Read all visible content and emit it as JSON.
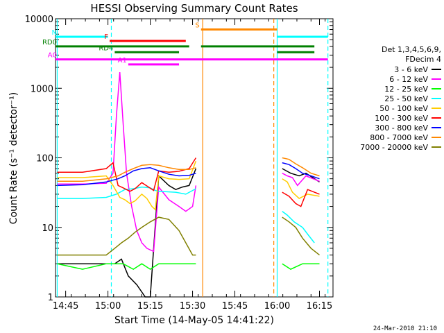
{
  "chart_data": {
    "type": "line",
    "title": "HESSI Observing Summary Count Rates",
    "xlabel": "Start Time (14-May-05 14:41:22)",
    "ylabel": "Count Rate (s⁻¹ detector⁻¹)",
    "ylog": true,
    "xlim": [
      14.69,
      16.33
    ],
    "ylim": [
      1,
      10000
    ],
    "x_ticks": [
      {
        "t": 14.75,
        "label": "14:45"
      },
      {
        "t": 15.0,
        "label": "15:00"
      },
      {
        "t": 15.25,
        "label": "15:15"
      },
      {
        "t": 15.5,
        "label": "15:30"
      },
      {
        "t": 15.75,
        "label": "15:45"
      },
      {
        "t": 16.0,
        "label": "16:00"
      },
      {
        "t": 16.25,
        "label": "16:15"
      }
    ],
    "y_ticks": [
      {
        "v": 1,
        "label": "1"
      },
      {
        "v": 10,
        "label": "10"
      },
      {
        "v": 100,
        "label": "100"
      },
      {
        "v": 1000,
        "label": "1000"
      },
      {
        "v": 10000,
        "label": "10000"
      }
    ],
    "legend": {
      "header": [
        "Det 1,3,4,5,6,9,",
        "FDecim 4"
      ],
      "position": "right"
    },
    "series": [
      {
        "name": "3 - 6 keV",
        "color": "#000000",
        "points": [
          [
            14.7,
            3
          ],
          [
            14.85,
            3
          ],
          [
            14.99,
            3
          ],
          [
            15.04,
            3
          ],
          [
            15.08,
            3.5
          ],
          [
            15.12,
            2
          ],
          [
            15.17,
            1.5
          ],
          [
            15.22,
            1
          ],
          [
            15.25,
            1
          ],
          [
            15.3,
            55
          ],
          [
            15.36,
            40
          ],
          [
            15.4,
            35
          ],
          [
            15.44,
            38
          ],
          [
            15.48,
            40
          ],
          [
            15.52,
            70
          ],
          [
            16.03,
            70
          ],
          [
            16.08,
            60
          ],
          [
            16.13,
            55
          ],
          [
            16.17,
            60
          ],
          [
            16.25,
            45
          ]
        ]
      },
      {
        "name": "6 - 12 keV",
        "color": "#ff00ff",
        "points": [
          [
            14.7,
            42
          ],
          [
            14.85,
            42
          ],
          [
            14.99,
            43
          ],
          [
            15.03,
            60
          ],
          [
            15.05,
            400
          ],
          [
            15.07,
            1700
          ],
          [
            15.09,
            300
          ],
          [
            15.11,
            60
          ],
          [
            15.14,
            20
          ],
          [
            15.17,
            9
          ],
          [
            15.2,
            6
          ],
          [
            15.23,
            5
          ],
          [
            15.27,
            4.5
          ],
          [
            15.3,
            38
          ],
          [
            15.36,
            25
          ],
          [
            15.42,
            20
          ],
          [
            15.46,
            17
          ],
          [
            15.5,
            20
          ],
          [
            15.52,
            40
          ],
          [
            16.03,
            60
          ],
          [
            16.06,
            55
          ],
          [
            16.09,
            52
          ],
          [
            16.12,
            40
          ],
          [
            16.17,
            55
          ],
          [
            16.25,
            46
          ]
        ]
      },
      {
        "name": "12 - 25 keV",
        "color": "#00ff00",
        "points": [
          [
            14.7,
            3
          ],
          [
            14.85,
            2.5
          ],
          [
            14.99,
            3
          ],
          [
            15.04,
            3
          ],
          [
            15.09,
            3
          ],
          [
            15.15,
            2.5
          ],
          [
            15.2,
            3
          ],
          [
            15.25,
            2.5
          ],
          [
            15.3,
            3
          ],
          [
            15.4,
            3
          ],
          [
            15.45,
            3
          ],
          [
            15.5,
            3
          ],
          [
            15.52,
            3
          ],
          [
            16.03,
            3
          ],
          [
            16.08,
            2.5
          ],
          [
            16.15,
            3
          ],
          [
            16.25,
            3
          ]
        ]
      },
      {
        "name": "25 - 50 keV",
        "color": "#00ffff",
        "points": [
          [
            14.7,
            26
          ],
          [
            14.85,
            26
          ],
          [
            14.99,
            27
          ],
          [
            15.05,
            30
          ],
          [
            15.1,
            35
          ],
          [
            15.15,
            36
          ],
          [
            15.2,
            38
          ],
          [
            15.25,
            37
          ],
          [
            15.28,
            34
          ],
          [
            15.3,
            33
          ],
          [
            15.4,
            32
          ],
          [
            15.46,
            30
          ],
          [
            15.52,
            36
          ],
          [
            16.03,
            17
          ],
          [
            16.06,
            15
          ],
          [
            16.1,
            12
          ],
          [
            16.15,
            10
          ],
          [
            16.18,
            8
          ],
          [
            16.22,
            6
          ]
        ]
      },
      {
        "name": "50 - 100 keV",
        "color": "#ffcc00",
        "points": [
          [
            14.7,
            52
          ],
          [
            14.85,
            52
          ],
          [
            14.99,
            55
          ],
          [
            15.03,
            40
          ],
          [
            15.07,
            27
          ],
          [
            15.1,
            25
          ],
          [
            15.13,
            22
          ],
          [
            15.16,
            24
          ],
          [
            15.2,
            30
          ],
          [
            15.23,
            26
          ],
          [
            15.26,
            20
          ],
          [
            15.28,
            18
          ],
          [
            15.3,
            55
          ],
          [
            15.36,
            50
          ],
          [
            15.42,
            49
          ],
          [
            15.48,
            50
          ],
          [
            15.52,
            90
          ],
          [
            16.03,
            50
          ],
          [
            16.06,
            45
          ],
          [
            16.09,
            32
          ],
          [
            16.13,
            26
          ],
          [
            16.18,
            30
          ],
          [
            16.25,
            28
          ]
        ]
      },
      {
        "name": "100 - 300 keV",
        "color": "#ff0000",
        "points": [
          [
            14.7,
            62
          ],
          [
            14.85,
            62
          ],
          [
            14.99,
            70
          ],
          [
            15.03,
            85
          ],
          [
            15.06,
            40
          ],
          [
            15.09,
            37
          ],
          [
            15.13,
            33
          ],
          [
            15.16,
            36
          ],
          [
            15.2,
            44
          ],
          [
            15.24,
            38
          ],
          [
            15.27,
            34
          ],
          [
            15.3,
            65
          ],
          [
            15.36,
            62
          ],
          [
            15.42,
            64
          ],
          [
            15.48,
            70
          ],
          [
            15.52,
            100
          ],
          [
            16.03,
            32
          ],
          [
            16.07,
            28
          ],
          [
            16.11,
            22
          ],
          [
            16.14,
            20
          ],
          [
            16.18,
            35
          ],
          [
            16.25,
            30
          ]
        ]
      },
      {
        "name": "300 - 800 keV",
        "color": "#0000ff",
        "points": [
          [
            14.7,
            40
          ],
          [
            14.85,
            41
          ],
          [
            14.99,
            45
          ],
          [
            15.06,
            50
          ],
          [
            15.1,
            55
          ],
          [
            15.15,
            65
          ],
          [
            15.2,
            70
          ],
          [
            15.25,
            72
          ],
          [
            15.3,
            65
          ],
          [
            15.36,
            58
          ],
          [
            15.42,
            55
          ],
          [
            15.48,
            56
          ],
          [
            15.52,
            60
          ],
          [
            16.03,
            85
          ],
          [
            16.07,
            80
          ],
          [
            16.11,
            70
          ],
          [
            16.15,
            60
          ],
          [
            16.2,
            55
          ],
          [
            16.25,
            50
          ]
        ]
      },
      {
        "name": "800 - 7000 keV",
        "color": "#ff8800",
        "points": [
          [
            14.7,
            46
          ],
          [
            14.85,
            46
          ],
          [
            14.99,
            50
          ],
          [
            15.06,
            55
          ],
          [
            15.1,
            62
          ],
          [
            15.15,
            70
          ],
          [
            15.2,
            78
          ],
          [
            15.25,
            80
          ],
          [
            15.3,
            78
          ],
          [
            15.36,
            72
          ],
          [
            15.42,
            68
          ],
          [
            15.48,
            68
          ],
          [
            15.52,
            72
          ],
          [
            16.03,
            100
          ],
          [
            16.07,
            95
          ],
          [
            16.11,
            82
          ],
          [
            16.15,
            72
          ],
          [
            16.2,
            60
          ],
          [
            16.25,
            55
          ]
        ]
      },
      {
        "name": "7000 - 20000 keV",
        "color": "#808000",
        "points": [
          [
            14.7,
            4
          ],
          [
            14.85,
            4
          ],
          [
            14.99,
            4
          ],
          [
            15.04,
            5
          ],
          [
            15.08,
            6
          ],
          [
            15.12,
            7
          ],
          [
            15.16,
            8.5
          ],
          [
            15.2,
            10
          ],
          [
            15.25,
            12
          ],
          [
            15.3,
            14
          ],
          [
            15.36,
            13
          ],
          [
            15.42,
            9
          ],
          [
            15.46,
            6
          ],
          [
            15.5,
            4
          ],
          [
            15.52,
            4
          ],
          [
            16.03,
            14
          ],
          [
            16.07,
            12
          ],
          [
            16.11,
            10
          ],
          [
            16.15,
            7
          ],
          [
            16.2,
            5
          ],
          [
            16.25,
            4
          ]
        ]
      }
    ],
    "flag_bars": [
      {
        "label": "N",
        "color": "#00ffff",
        "y": 5500,
        "segments": [
          [
            14.69,
            15.0
          ],
          [
            16.0,
            16.3
          ]
        ]
      },
      {
        "label": "F",
        "color": "#ff0000",
        "y": 4800,
        "segments": [
          [
            15.01,
            15.46
          ]
        ]
      },
      {
        "label": "S",
        "color": "#ff8800",
        "y": 7000,
        "segments": [
          [
            15.55,
            16.0
          ]
        ]
      },
      {
        "label": "RD0",
        "color": "#008000",
        "y": 4000,
        "segments": [
          [
            14.69,
            15.48
          ],
          [
            15.55,
            16.22
          ]
        ]
      },
      {
        "label": "RD4",
        "color": "#008000",
        "y": 3300,
        "segments": [
          [
            15.04,
            15.42
          ],
          [
            16.0,
            16.22
          ]
        ]
      },
      {
        "label": "A0",
        "color": "#ff00ff",
        "y": 2600,
        "segments": [
          [
            14.69,
            16.3
          ]
        ]
      },
      {
        "label": "A1",
        "color": "#ff00ff",
        "y": 2200,
        "segments": [
          [
            15.12,
            15.42
          ]
        ]
      }
    ],
    "vertical_markers": [
      {
        "t": 14.7,
        "color": "#00ffff",
        "style": "solid"
      },
      {
        "t": 15.02,
        "color": "#00ffff",
        "style": "dash"
      },
      {
        "t": 15.56,
        "color": "#ff8800",
        "style": "solid"
      },
      {
        "t": 15.98,
        "color": "#ff8800",
        "style": "dash"
      },
      {
        "t": 16.0,
        "color": "#00ffff",
        "style": "solid"
      },
      {
        "t": 16.3,
        "color": "#00ffff",
        "style": "dash"
      }
    ],
    "timestamp": "24-Mar-2010 21:10"
  }
}
